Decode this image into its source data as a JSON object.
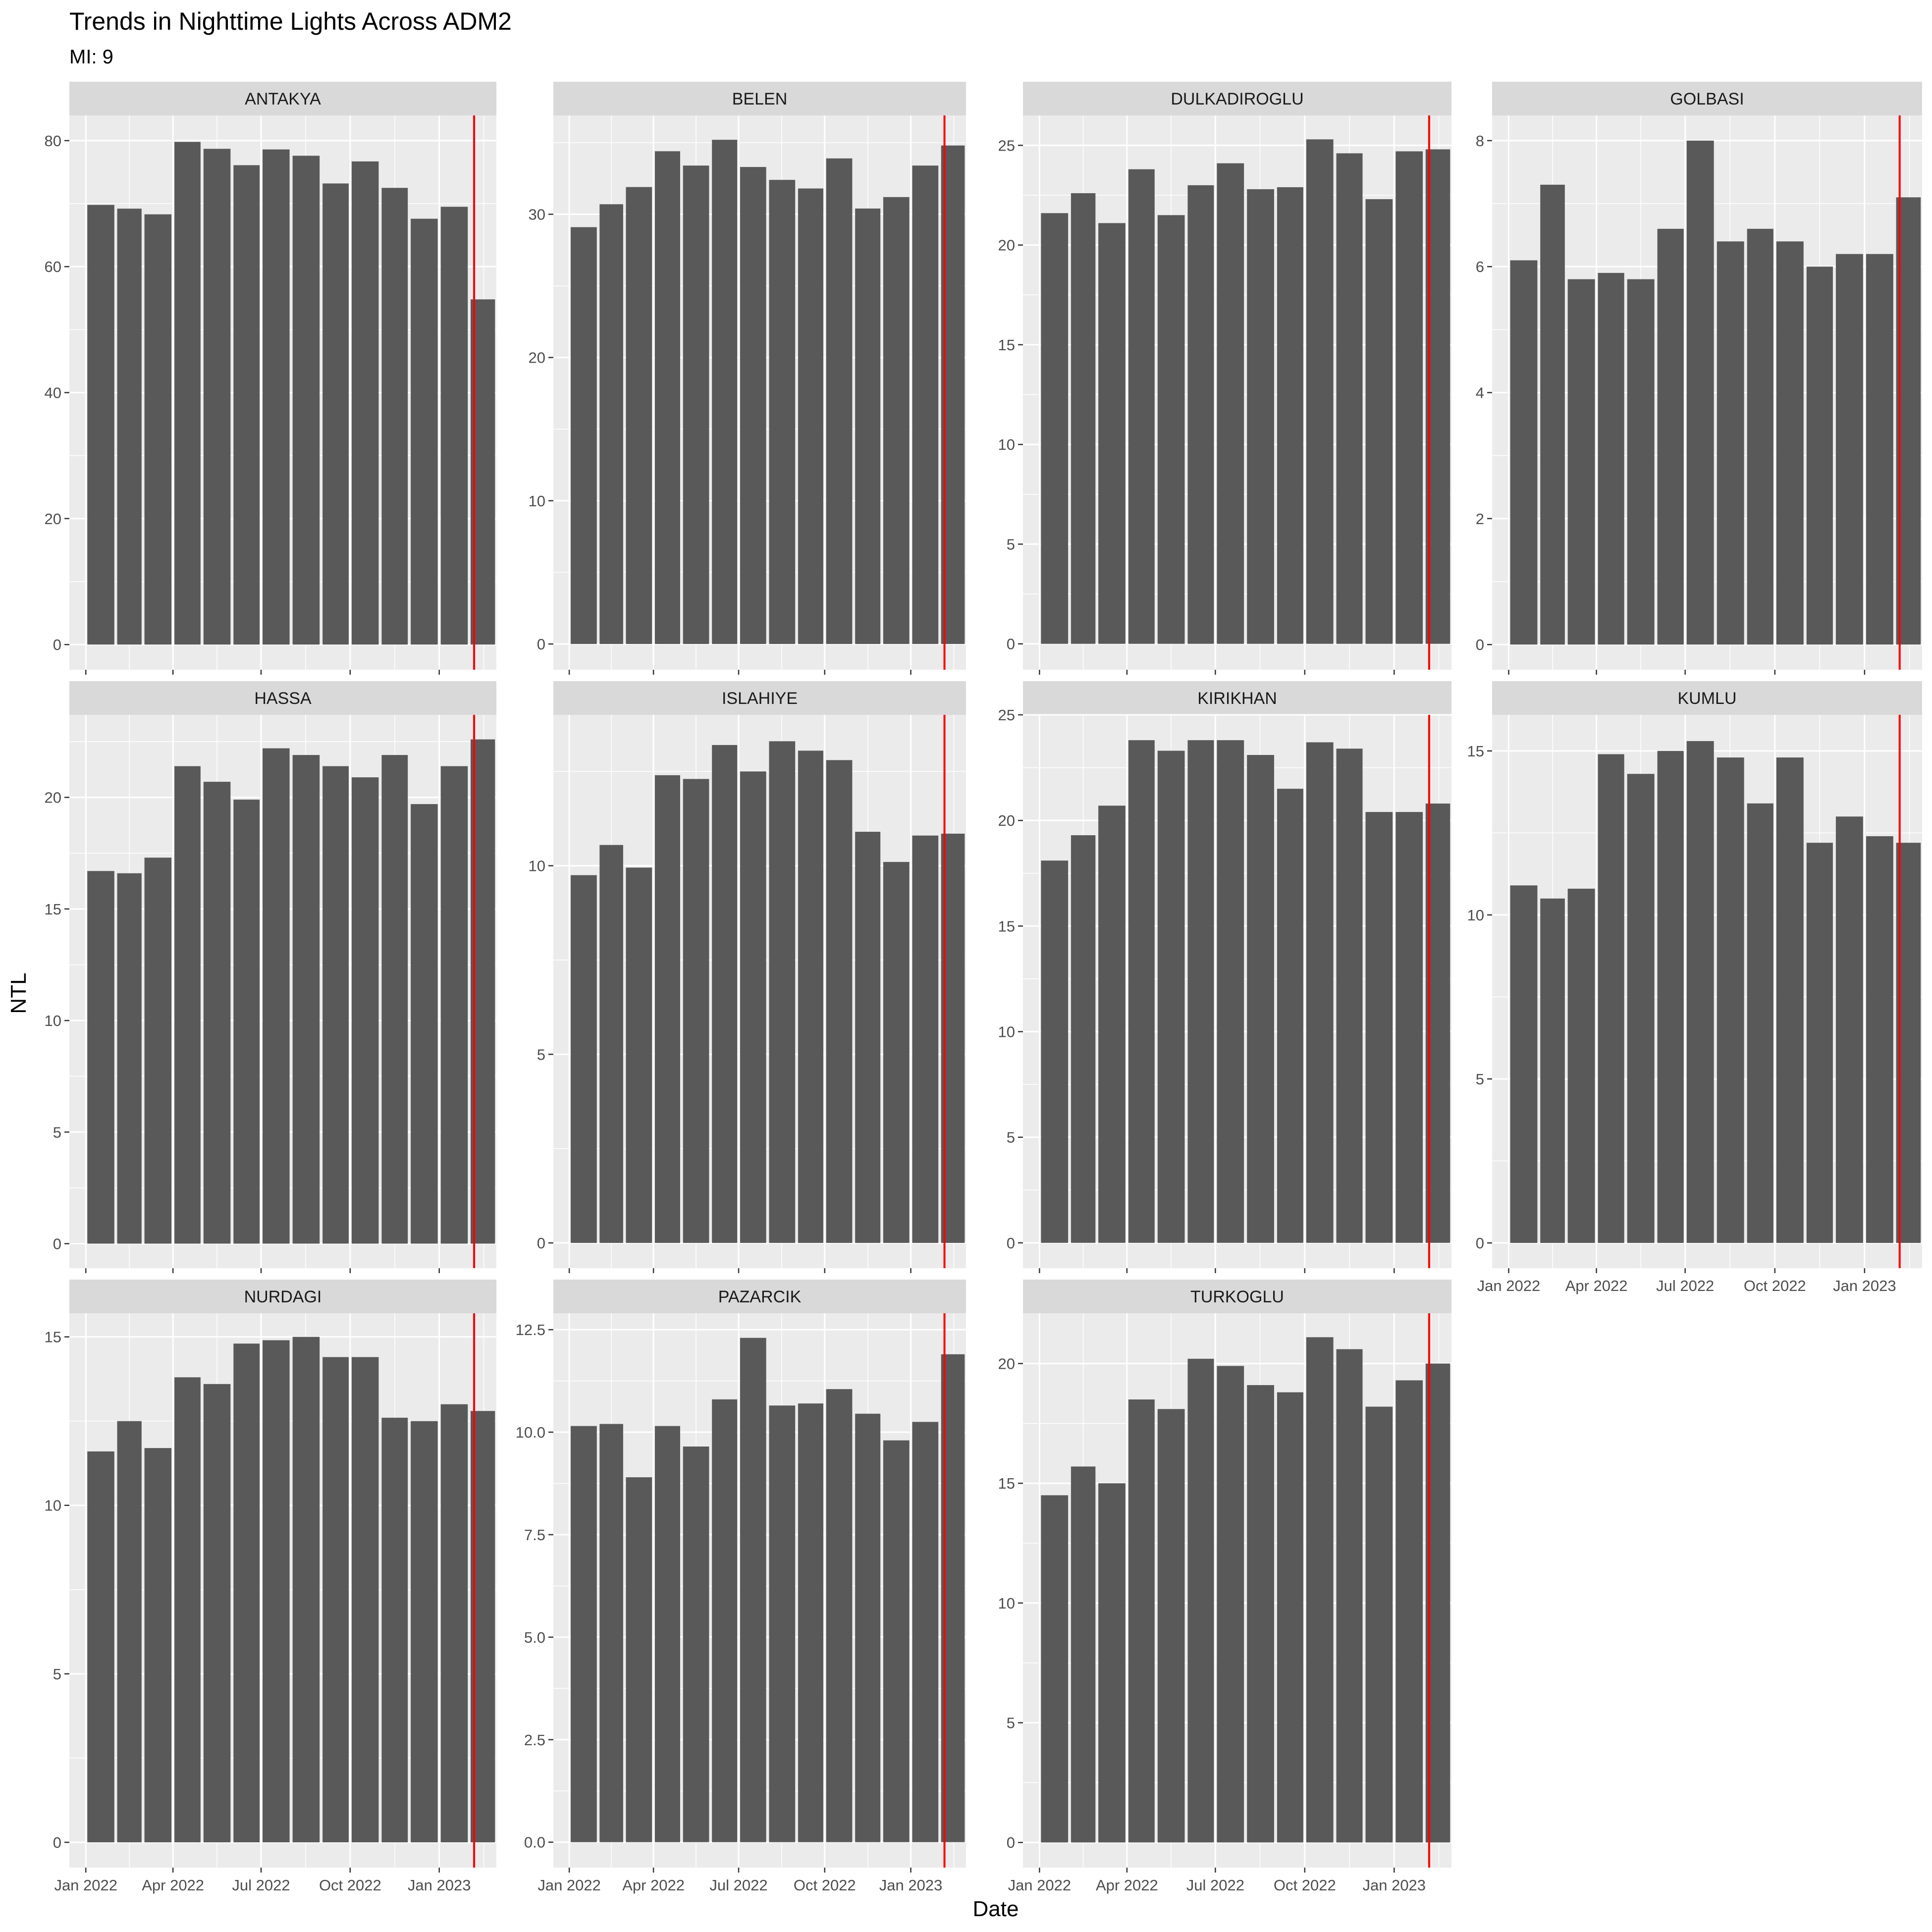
{
  "title": "Trends in Nighttime Lights Across ADM2",
  "subtitle": "MI: 9",
  "xlabel": "Date",
  "ylabel": "NTL",
  "colors": {
    "panel_bg": "#EBEBEB",
    "grid": "#FFFFFF",
    "strip_bg": "#D9D9D9",
    "bar": "#595959",
    "marker": "#FF0000",
    "text": "#1A1A1A",
    "axis_text": "#4D4D4D"
  },
  "chart_data": {
    "type": "bar",
    "layout": "facet_wrap",
    "ncol": 4,
    "x_ticks": [
      "Jan 2022",
      "Apr 2022",
      "Jul 2022",
      "Oct 2022",
      "Jan 2023"
    ],
    "x_tick_dates": [
      "2022-01-01",
      "2022-04-01",
      "2022-07-01",
      "2022-10-01",
      "2023-01-01"
    ],
    "months": [
      "2022-01",
      "2022-02",
      "2022-03",
      "2022-04",
      "2022-05",
      "2022-06",
      "2022-07",
      "2022-08",
      "2022-09",
      "2022-10",
      "2022-11",
      "2022-12",
      "2023-01",
      "2023-02"
    ],
    "xlim": [
      "2021-12-15",
      "2023-03-01"
    ],
    "event_date": "2023-02-06",
    "grid": true,
    "panels": [
      {
        "name": "ANTAKYA",
        "values": [
          69.8,
          69.2,
          68.3,
          79.8,
          78.7,
          76.1,
          78.6,
          77.6,
          73.2,
          76.7,
          72.5,
          67.6,
          69.5,
          54.8
        ],
        "ylim": [
          -4,
          84
        ],
        "yticks": [
          0,
          20,
          40,
          60,
          80
        ]
      },
      {
        "name": "BELEN",
        "values": [
          29.1,
          30.7,
          31.9,
          34.4,
          33.4,
          35.2,
          33.3,
          32.4,
          31.8,
          33.9,
          30.4,
          31.2,
          33.4,
          34.8
        ],
        "ylim": [
          -1.8,
          36.9
        ],
        "yticks": [
          0,
          10,
          20,
          30
        ]
      },
      {
        "name": "DULKADIROGLU",
        "values": [
          21.6,
          22.6,
          21.1,
          23.8,
          21.5,
          23.0,
          24.1,
          22.8,
          22.9,
          25.3,
          24.6,
          22.3,
          24.7,
          24.8
        ],
        "ylim": [
          -1.3,
          26.5
        ],
        "yticks": [
          0,
          5,
          10,
          15,
          20,
          25
        ]
      },
      {
        "name": "GOLBASI",
        "values": [
          6.1,
          7.3,
          5.8,
          5.9,
          5.8,
          6.6,
          8.0,
          6.4,
          6.6,
          6.4,
          6.0,
          6.2,
          6.2,
          7.1
        ],
        "ylim": [
          -0.4,
          8.4
        ],
        "yticks": [
          0,
          2,
          4,
          6,
          8
        ]
      },
      {
        "name": "HASSA",
        "values": [
          16.7,
          16.6,
          17.3,
          21.4,
          20.7,
          19.9,
          22.2,
          21.9,
          21.4,
          20.9,
          21.9,
          19.7,
          21.4,
          22.6
        ],
        "ylim": [
          -1.1,
          23.7
        ],
        "yticks": [
          0,
          5,
          10,
          15,
          20
        ]
      },
      {
        "name": "ISLAHIYE",
        "values": [
          9.75,
          10.55,
          9.95,
          12.4,
          12.3,
          13.2,
          12.5,
          13.3,
          13.05,
          12.8,
          10.9,
          10.1,
          10.8,
          10.85
        ],
        "ylim": [
          -0.67,
          14.0
        ],
        "yticks": [
          0,
          5,
          10
        ]
      },
      {
        "name": "KIRIKHAN",
        "values": [
          18.1,
          19.3,
          20.7,
          23.8,
          23.3,
          23.8,
          23.8,
          23.1,
          21.5,
          23.7,
          23.4,
          20.4,
          20.4,
          20.8
        ],
        "ylim": [
          -1.2,
          25.0
        ],
        "yticks": [
          0,
          5,
          10,
          15,
          20,
          25
        ]
      },
      {
        "name": "KUMLU",
        "values": [
          10.9,
          10.5,
          10.8,
          14.9,
          14.3,
          15.0,
          15.3,
          14.8,
          13.4,
          14.8,
          12.2,
          13.0,
          12.4,
          12.2
        ],
        "ylim": [
          -0.77,
          16.1
        ],
        "yticks": [
          0,
          5,
          10,
          15
        ]
      },
      {
        "name": "NURDAGI",
        "values": [
          11.6,
          12.5,
          11.7,
          13.8,
          13.6,
          14.8,
          14.9,
          15.0,
          14.4,
          14.4,
          12.6,
          12.5,
          13.0,
          12.8
        ],
        "ylim": [
          -0.75,
          15.7
        ],
        "yticks": [
          0,
          5,
          10,
          15
        ]
      },
      {
        "name": "PAZARCIK",
        "values": [
          10.15,
          10.2,
          8.9,
          10.15,
          9.65,
          10.8,
          12.3,
          10.65,
          10.7,
          11.05,
          10.45,
          9.8,
          10.25,
          11.9
        ],
        "ylim": [
          -0.62,
          12.9
        ],
        "yticks": [
          0.0,
          2.5,
          5.0,
          7.5,
          10.0,
          12.5
        ]
      },
      {
        "name": "TURKOGLU",
        "values": [
          14.5,
          15.7,
          15.0,
          18.5,
          18.1,
          20.2,
          19.9,
          19.1,
          18.8,
          21.1,
          20.6,
          18.2,
          19.3,
          20.0
        ],
        "ylim": [
          -1.05,
          22.1
        ],
        "yticks": [
          0,
          5,
          10,
          15,
          20
        ]
      }
    ]
  }
}
